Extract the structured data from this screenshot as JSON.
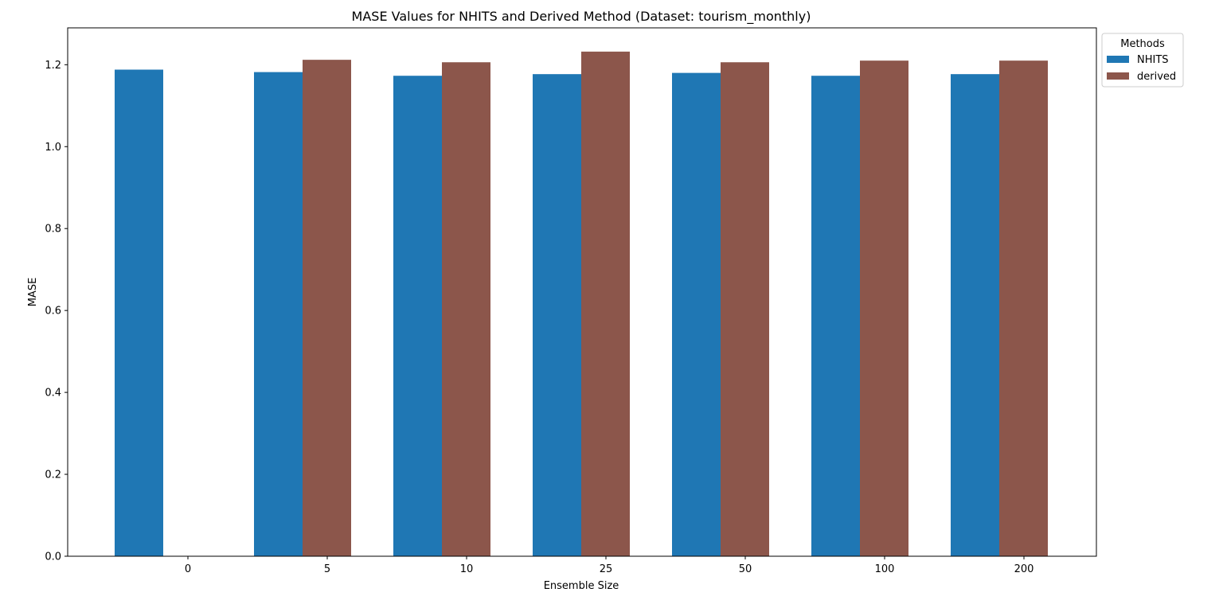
{
  "chart_data": {
    "type": "bar",
    "title": "MASE Values for NHITS and Derived Method (Dataset: tourism_monthly)",
    "xlabel": "Ensemble Size",
    "ylabel": "MASE",
    "categories": [
      "0",
      "5",
      "10",
      "25",
      "50",
      "100",
      "200"
    ],
    "series": [
      {
        "name": "NHITS",
        "color": "#1f77b4",
        "values": [
          1.188,
          1.182,
          1.173,
          1.177,
          1.18,
          1.173,
          1.177
        ]
      },
      {
        "name": "derived",
        "color": "#8c564b",
        "values": [
          null,
          1.212,
          1.206,
          1.232,
          1.206,
          1.21,
          1.21
        ]
      }
    ],
    "ylim": [
      0,
      1.29
    ],
    "yticks": [
      0.0,
      0.2,
      0.4,
      0.6,
      0.8,
      1.0,
      1.2
    ],
    "ytick_labels": [
      "0.0",
      "0.2",
      "0.4",
      "0.6",
      "0.8",
      "1.0",
      "1.2"
    ],
    "grid": false,
    "legend": {
      "title": "Methods",
      "placement": "outside-top-right"
    }
  }
}
